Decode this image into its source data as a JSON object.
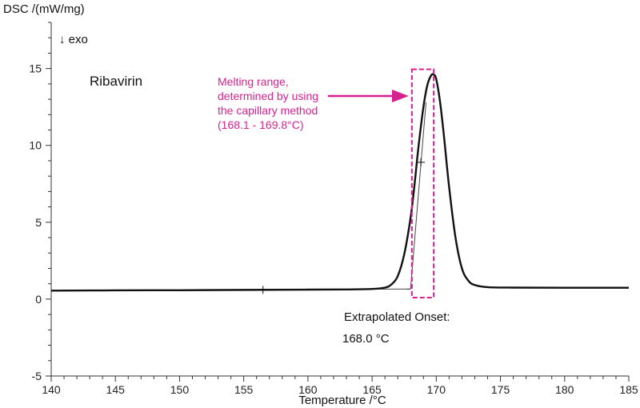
{
  "chart_data": {
    "type": "line",
    "title": "",
    "ylabel": "DSC /(mW/mg)",
    "xlabel": "Temperature /°C",
    "exo_label": "↓ exo",
    "xlim": [
      140,
      185
    ],
    "ylim": [
      -5,
      18
    ],
    "x_ticks": [
      140,
      145,
      150,
      155,
      160,
      165,
      170,
      175,
      180,
      185
    ],
    "y_ticks": [
      -5,
      0,
      5,
      10,
      15
    ],
    "series": [
      {
        "name": "Ribavirin",
        "x": [
          140,
          145,
          150,
          155,
          160,
          163,
          165,
          166,
          166.5,
          167,
          167.5,
          168,
          168.3,
          168.6,
          169,
          169.3,
          169.6,
          169.8,
          170,
          170.3,
          170.6,
          171,
          171.5,
          172,
          172.5,
          173,
          174,
          176,
          180,
          185
        ],
        "y": [
          0.55,
          0.57,
          0.58,
          0.6,
          0.62,
          0.63,
          0.66,
          0.75,
          0.95,
          1.5,
          2.9,
          5.3,
          7.4,
          9.8,
          12.5,
          13.9,
          14.55,
          14.6,
          14.3,
          12.8,
          10.6,
          7.3,
          4.0,
          2.0,
          1.2,
          0.92,
          0.78,
          0.75,
          0.74,
          0.74
        ]
      }
    ],
    "baseline": {
      "x": [
        140,
        168.0
      ],
      "y": [
        0.55,
        0.66
      ]
    },
    "onset_tangent": {
      "x": [
        168.0,
        169.2
      ],
      "y": [
        0.66,
        12.8
      ]
    },
    "markers": [
      {
        "x": 156.5,
        "y": 0.6
      },
      {
        "x": 168.8,
        "y": 8.9
      }
    ],
    "melting_range": {
      "x_start": 168.1,
      "x_end": 169.8,
      "y_min": 0.1,
      "y_max": 14.95,
      "color": "#d6218f"
    },
    "annotations": {
      "sample_name": "Ribavirin",
      "melting_lines": [
        "Melting range,",
        "determined by using",
        "the capillary method",
        "(168.1 - 169.8°C)"
      ],
      "onset_label": "Extrapolated Onset:",
      "onset_value": "168.0 °C"
    },
    "colors": {
      "curve": "#111111",
      "axis": "#333333",
      "highlight": "#d6218f"
    }
  }
}
